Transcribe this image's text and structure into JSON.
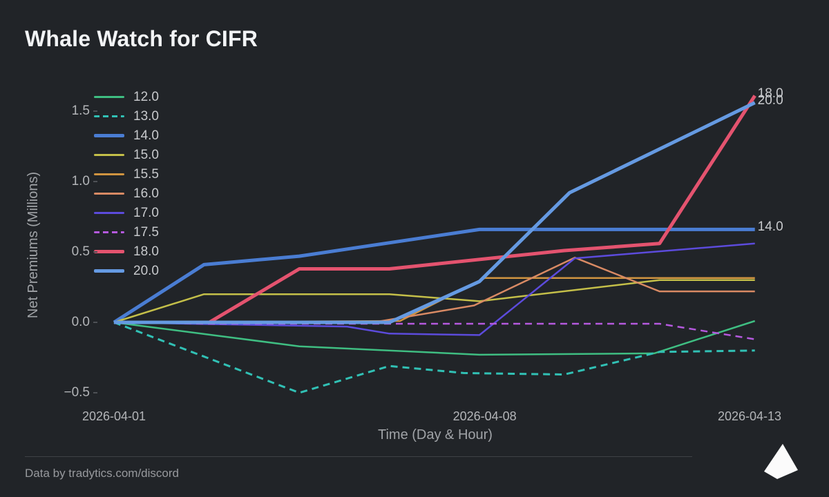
{
  "page": {
    "title": "Whale Watch for CIFR",
    "footer_text": "Data by tradytics.com/discord"
  },
  "chart_data": {
    "type": "line",
    "title": "Whale Watch for CIFR",
    "xlabel": "Time (Day & Hour)",
    "ylabel": "Net Premiums (Millions)",
    "grid": false,
    "legend_position": "top-left",
    "x_unit": "days since 2026-04-01",
    "x_range_days": [
      0,
      12.4
    ],
    "y_range": [
      -0.65,
      1.72
    ],
    "x_ticks": [
      {
        "label": "2026-04-01",
        "day": 0
      },
      {
        "label": "2026-04-08",
        "day": 7
      },
      {
        "label": "2026-04-13",
        "day": 12
      }
    ],
    "y_ticks": [
      {
        "label": "1.5",
        "value": 1.5
      },
      {
        "label": "1.0",
        "value": 1.0
      },
      {
        "label": "0.5",
        "value": 0.5
      },
      {
        "label": "0.0",
        "value": 0.0
      },
      {
        "label": "−0.5",
        "value": -0.5
      }
    ],
    "series": [
      {
        "name": "12.0",
        "color": "#3fbe82",
        "width": 2.5,
        "dash": "solid",
        "points": [
          [
            0,
            0
          ],
          [
            3.5,
            -0.17
          ],
          [
            6.9,
            -0.23
          ],
          [
            10.2,
            -0.22
          ],
          [
            12.1,
            0.01
          ]
        ]
      },
      {
        "name": "13.0",
        "color": "#31c1b5",
        "width": 3,
        "dash": "dashed",
        "points": [
          [
            0,
            0
          ],
          [
            3.5,
            -0.5
          ],
          [
            5.2,
            -0.31
          ],
          [
            6.6,
            -0.36
          ],
          [
            8.5,
            -0.37
          ],
          [
            10.3,
            -0.21
          ],
          [
            12.1,
            -0.2
          ]
        ]
      },
      {
        "name": "14.0",
        "color": "#4a7dd3",
        "width": 5,
        "dash": "solid",
        "end_label": "14.0",
        "points": [
          [
            0,
            0
          ],
          [
            1.7,
            0.41
          ],
          [
            3.5,
            0.47
          ],
          [
            6.9,
            0.66
          ],
          [
            12.1,
            0.66
          ]
        ]
      },
      {
        "name": "15.0",
        "color": "#c4bf49",
        "width": 2.5,
        "dash": "solid",
        "points": [
          [
            0,
            0
          ],
          [
            1.7,
            0.2
          ],
          [
            5.2,
            0.2
          ],
          [
            6.9,
            0.15
          ],
          [
            10.3,
            0.3
          ],
          [
            12.1,
            0.3
          ]
        ]
      },
      {
        "name": "15.5",
        "color": "#d09440",
        "width": 2.5,
        "dash": "solid",
        "points": [
          [
            0,
            0
          ],
          [
            5.4,
            0.01
          ],
          [
            7.0,
            0.315
          ],
          [
            12.1,
            0.315
          ]
        ]
      },
      {
        "name": "16.0",
        "color": "#d98a64",
        "width": 2.5,
        "dash": "solid",
        "points": [
          [
            0,
            0
          ],
          [
            4.9,
            0.0
          ],
          [
            6.8,
            0.12
          ],
          [
            8.7,
            0.46
          ],
          [
            10.3,
            0.22
          ],
          [
            12.1,
            0.22
          ]
        ]
      },
      {
        "name": "17.0",
        "color": "#5c4bdc",
        "width": 2.5,
        "dash": "solid",
        "points": [
          [
            0,
            0
          ],
          [
            4.4,
            -0.03
          ],
          [
            5.2,
            -0.08
          ],
          [
            6.9,
            -0.09
          ],
          [
            8.7,
            0.455
          ],
          [
            12.1,
            0.56
          ]
        ]
      },
      {
        "name": "17.5",
        "color": "#b559de",
        "width": 2.5,
        "dash": "dashed",
        "points": [
          [
            0,
            0
          ],
          [
            1.8,
            -0.01
          ],
          [
            10.3,
            -0.01
          ],
          [
            12.1,
            -0.12
          ]
        ]
      },
      {
        "name": "18.0",
        "color": "#e4536f",
        "width": 5,
        "dash": "solid",
        "end_label": "18.0",
        "points": [
          [
            0,
            0
          ],
          [
            1.8,
            0.0
          ],
          [
            3.5,
            0.38
          ],
          [
            5.2,
            0.38
          ],
          [
            8.5,
            0.51
          ],
          [
            10.3,
            0.56
          ],
          [
            12.1,
            1.61
          ]
        ]
      },
      {
        "name": "20.0",
        "color": "#659ae2",
        "width": 5,
        "dash": "solid",
        "end_label": "20.0",
        "points": [
          [
            0,
            0
          ],
          [
            5.2,
            0.0
          ],
          [
            6.9,
            0.29
          ],
          [
            8.6,
            0.92
          ],
          [
            12.1,
            1.56
          ]
        ]
      }
    ],
    "footer": "Data by tradytics.com/discord"
  }
}
